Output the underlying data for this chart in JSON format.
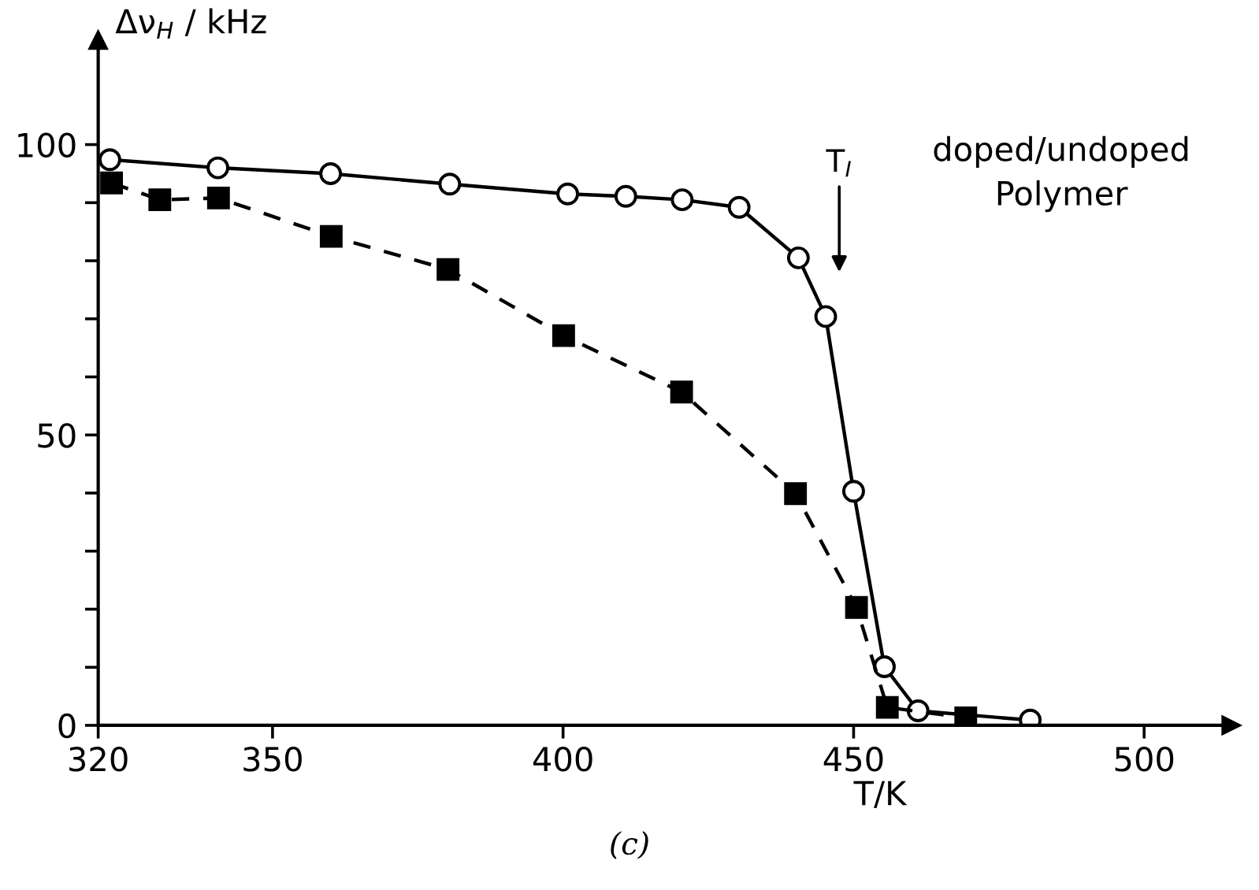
{
  "chart_data": {
    "type": "line",
    "ylabel": "Δν$_{H}$ / kHz",
    "xlabel": "T/K",
    "annotations": [
      "T$_{I}$",
      "doped/undoped\nPolymer",
      "(c)"
    ],
    "series": [
      {
        "color": "#000000",
        "marker": "circle",
        "line_style": "solid",
        "x": [
          322,
          340.6,
          360,
          380.5,
          400.8,
          410.8,
          420.5,
          430.3,
          440.5,
          445.2,
          450,
          455.3,
          461.1,
          480.4
        ],
        "values": [
          97.4,
          96,
          95,
          93.2,
          91.5,
          91.1,
          90.5,
          89.2,
          80.5,
          70.4,
          40.3,
          10.1,
          2.5,
          0.9
        ]
      },
      {
        "color": "#000000",
        "marker": "square",
        "line_style": "dashed",
        "x": [
          322.3,
          330.6,
          340.7,
          360.1,
          380.2,
          400.1,
          420.4,
          440,
          450.5,
          455.8,
          469.3
        ],
        "values": [
          93.4,
          90.5,
          90.8,
          84.2,
          78.5,
          67.1,
          57.4,
          39.9,
          20.3,
          3.1,
          1.3
        ]
      }
    ],
    "xlim": [
      320,
      515
    ],
    "ylim": [
      0,
      118
    ],
    "xticks": [
      320,
      350,
      400,
      450,
      500
    ],
    "yticks": [
      0,
      {
        "value": 10,
        "label": null
      },
      {
        "value": 20,
        "label": null
      },
      {
        "value": 30,
        "label": null
      },
      {
        "value": 40,
        "label": null
      },
      50,
      {
        "value": 60,
        "label": null
      },
      {
        "value": 70,
        "label": null
      },
      {
        "value": 80,
        "label": null
      },
      {
        "value": 90,
        "label": null
      },
      100
    ],
    "grid": false,
    "legend": false
  }
}
